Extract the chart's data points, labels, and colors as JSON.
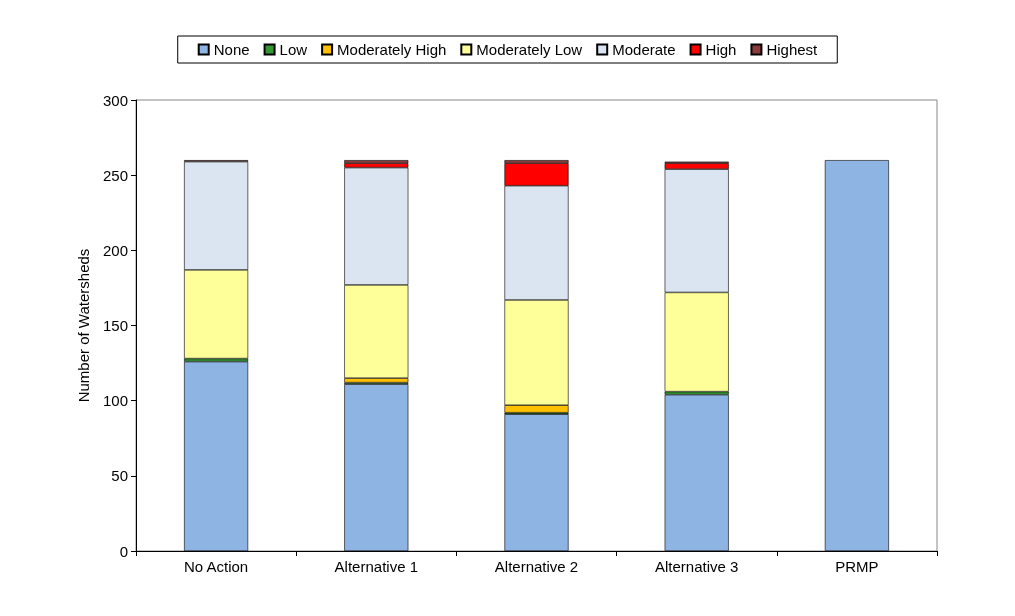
{
  "chart_data": {
    "type": "bar",
    "stacked": true,
    "ylabel": "Number of Watersheds",
    "categories": [
      "No Action",
      "Alternative 1",
      "Alternative 2",
      "Alternative 3",
      "PRMP"
    ],
    "series": [
      {
        "name": "None",
        "color": "#8eb4e3",
        "values": [
          126,
          111,
          91,
          104,
          260
        ]
      },
      {
        "name": "Low",
        "color": "#339933",
        "values": [
          2,
          1,
          1,
          2,
          null
        ]
      },
      {
        "name": "Moderately High",
        "color": "#ffc000",
        "values": [
          null,
          3,
          5,
          null,
          null
        ]
      },
      {
        "name": "Moderately Low",
        "color": "#ffff99",
        "values": [
          59,
          62,
          70,
          66,
          null
        ]
      },
      {
        "name": "Moderate",
        "color": "#dbe5f1",
        "values": [
          72,
          78,
          76,
          82,
          null
        ]
      },
      {
        "name": "High",
        "color": "#ff0000",
        "values": [
          null,
          3,
          15,
          4,
          null
        ]
      },
      {
        "name": "Highest",
        "color": "#8b3a3a",
        "values": [
          1,
          2,
          2,
          1,
          null
        ]
      }
    ],
    "ylim": [
      0,
      300
    ],
    "yticks": [
      0,
      50,
      100,
      150,
      200,
      250,
      300
    ],
    "grid": false,
    "legend": "top"
  }
}
